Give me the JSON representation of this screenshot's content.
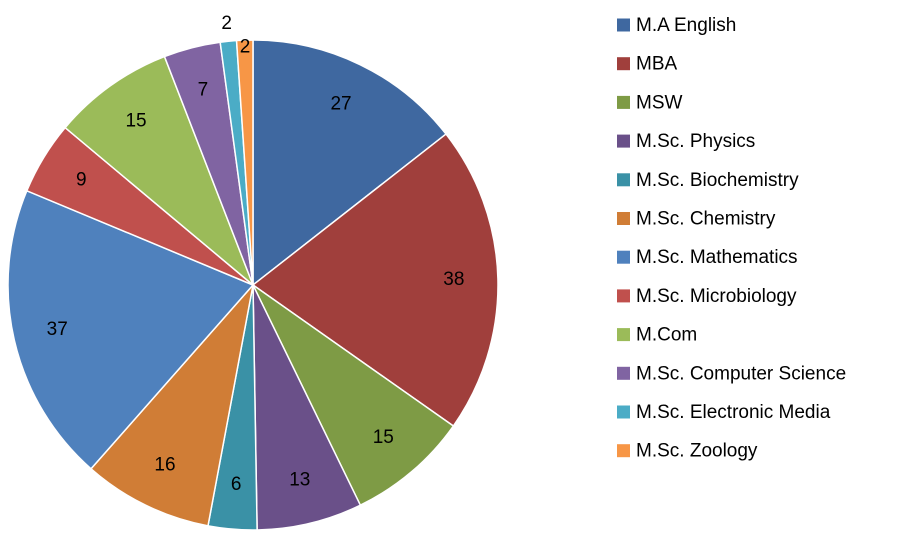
{
  "chart_data": {
    "type": "pie",
    "categories": [
      "M.A English",
      "MBA",
      "MSW",
      "M.Sc. Physics",
      "M.Sc. Biochemistry",
      "M.Sc. Chemistry",
      "M.Sc. Mathematics",
      "M.Sc. Microbiology",
      "M.Com",
      "M.Sc. Computer Science",
      "M.Sc. Electronic Media",
      "M.Sc. Zoology"
    ],
    "values": [
      27,
      38,
      15,
      13,
      6,
      16,
      37,
      9,
      15,
      7,
      2,
      2
    ],
    "colors": [
      "#3F68A0",
      "#A03F3C",
      "#7E9B45",
      "#6A5089",
      "#3A91A6",
      "#D07D36",
      "#4F81BD",
      "#C0504D",
      "#9BBB59",
      "#8064A2",
      "#4BACC6",
      "#F79646"
    ],
    "legend": "right"
  }
}
